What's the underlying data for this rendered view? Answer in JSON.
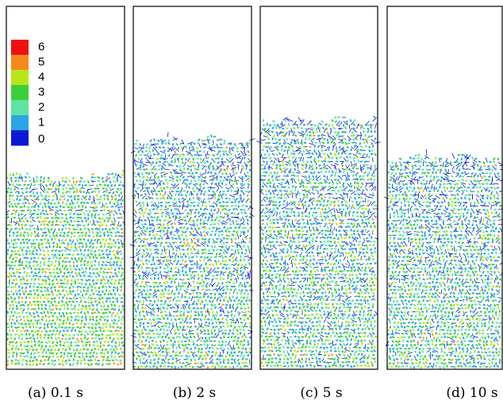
{
  "legend": {
    "items": [
      {
        "label": "6",
        "color": "#ee1010"
      },
      {
        "label": "5",
        "color": "#f58a1a"
      },
      {
        "label": "4",
        "color": "#b8e61a"
      },
      {
        "label": "3",
        "color": "#3ccf3c"
      },
      {
        "label": "2",
        "color": "#5fe3a0"
      },
      {
        "label": "1",
        "color": "#2aa6e6"
      },
      {
        "label": "0",
        "color": "#0a18d6"
      }
    ]
  },
  "panels": [
    {
      "caption": "(a) 0.1 s"
    },
    {
      "caption": "(b) 2 s"
    },
    {
      "caption": "(c) 5 s"
    },
    {
      "caption": "(d) 10 s"
    }
  ]
}
